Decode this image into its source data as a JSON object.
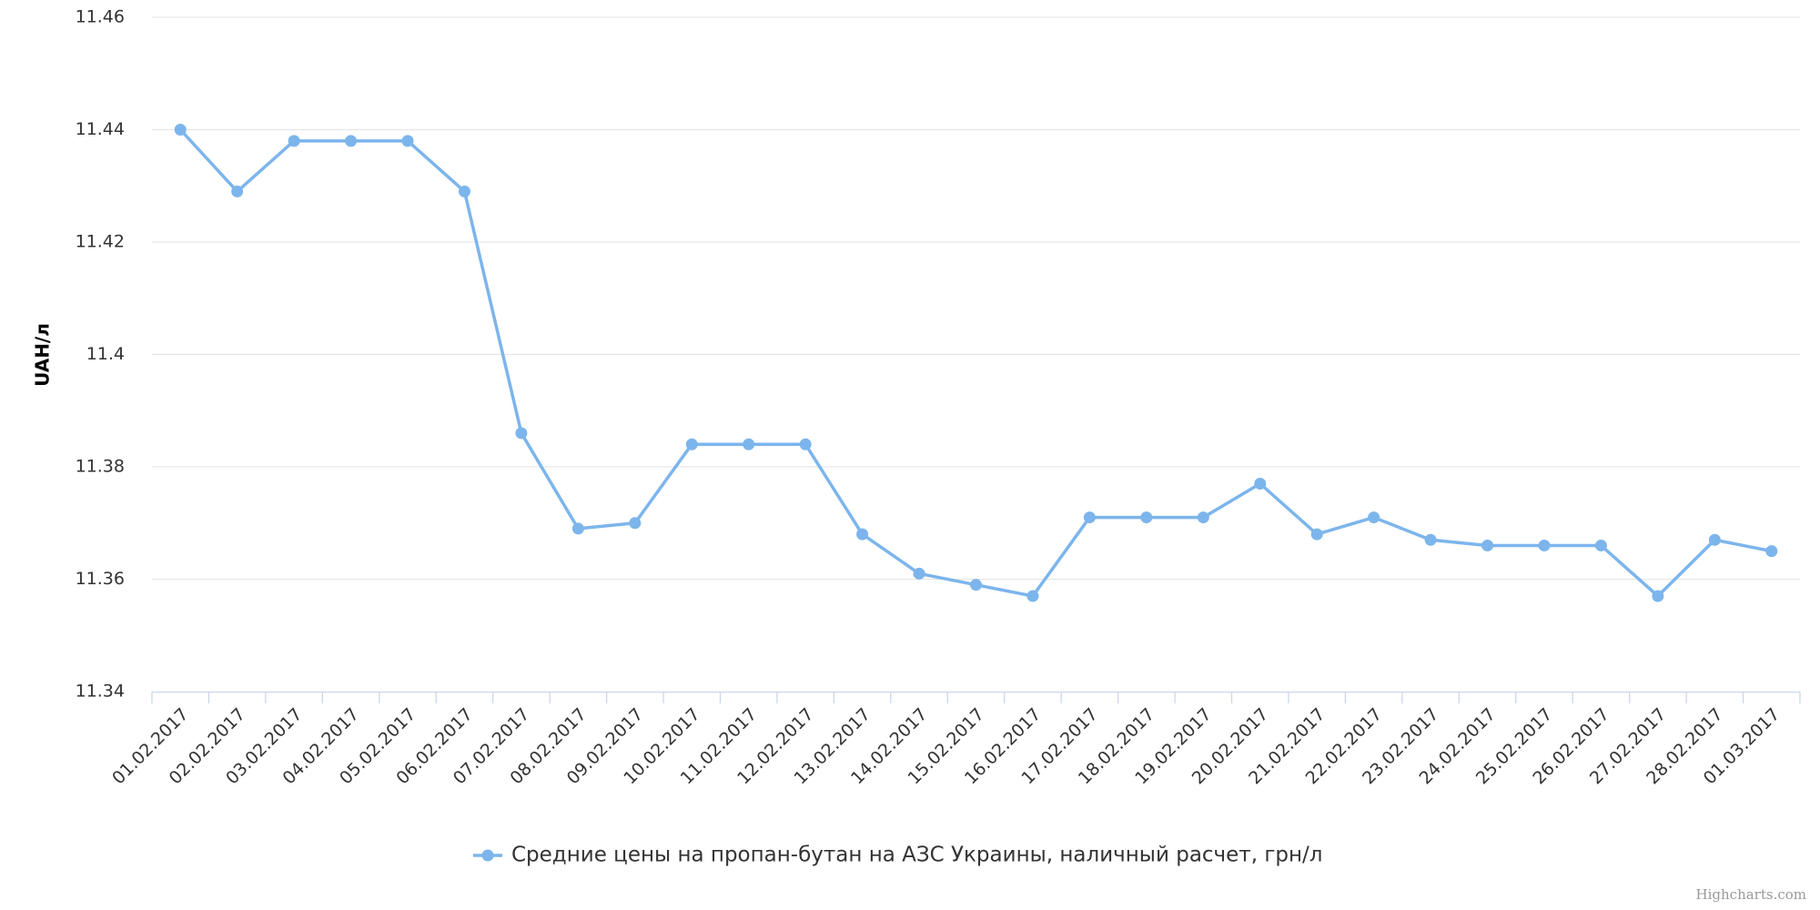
{
  "chart_data": {
    "type": "line",
    "y_label": "UAH/л",
    "categories": [
      "01.02.2017",
      "02.02.2017",
      "03.02.2017",
      "04.02.2017",
      "05.02.2017",
      "06.02.2017",
      "07.02.2017",
      "08.02.2017",
      "09.02.2017",
      "10.02.2017",
      "11.02.2017",
      "12.02.2017",
      "13.02.2017",
      "14.02.2017",
      "15.02.2017",
      "16.02.2017",
      "17.02.2017",
      "18.02.2017",
      "19.02.2017",
      "20.02.2017",
      "21.02.2017",
      "22.02.2017",
      "23.02.2017",
      "24.02.2017",
      "25.02.2017",
      "26.02.2017",
      "27.02.2017",
      "28.02.2017",
      "01.03.2017"
    ],
    "series": [
      {
        "name": "Средние цены на пропан-бутан на АЗС Украины, наличный расчет, грн/л",
        "color": "#7cb5ec",
        "values": [
          11.44,
          11.429,
          11.438,
          11.438,
          11.438,
          11.429,
          11.386,
          11.369,
          11.37,
          11.384,
          11.384,
          11.384,
          11.368,
          11.361,
          11.359,
          11.357,
          11.371,
          11.371,
          11.371,
          11.377,
          11.368,
          11.371,
          11.367,
          11.366,
          11.366,
          11.366,
          11.357,
          11.367,
          11.365
        ]
      }
    ],
    "ylim": [
      11.34,
      11.46
    ],
    "yticks": [
      11.34,
      11.36,
      11.38,
      11.4,
      11.42,
      11.44,
      11.46
    ],
    "grid": true,
    "legend": "bottom",
    "credits": "Highcharts.com"
  }
}
